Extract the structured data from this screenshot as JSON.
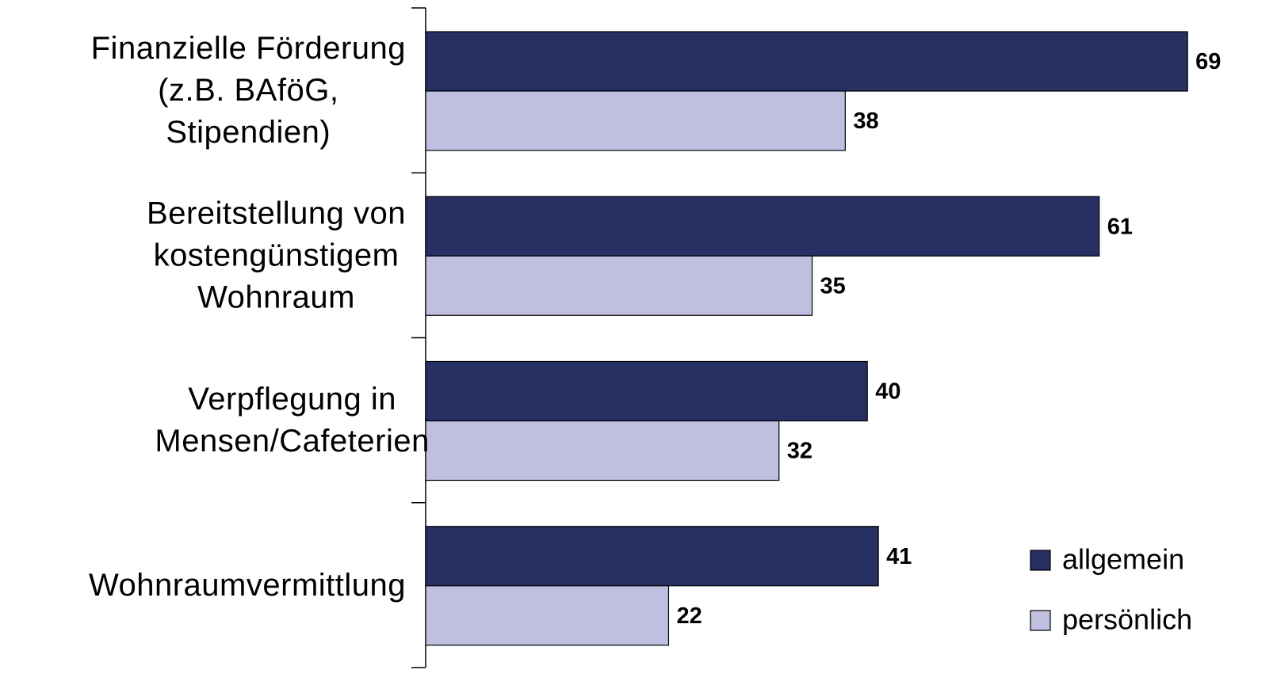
{
  "chart_data": {
    "type": "bar",
    "orientation": "horizontal",
    "categories": [
      "Finanzielle Förderung\n(z.B. BAföG,\nStipendien)",
      "Bereitstellung von\nkostengünstigem\nWohnraum",
      "Verpflegung in\nMensen/Cafeterien",
      "Wohnraumvermittlung"
    ],
    "series": [
      {
        "name": "allgemein",
        "color": "#263062",
        "values": [
          69,
          61,
          40,
          41
        ]
      },
      {
        "name": "persönlich",
        "color": "#bfc0e0",
        "values": [
          38,
          35,
          32,
          22
        ]
      }
    ],
    "xlim": [
      0,
      72
    ],
    "legend": "lower right",
    "grid": false
  }
}
